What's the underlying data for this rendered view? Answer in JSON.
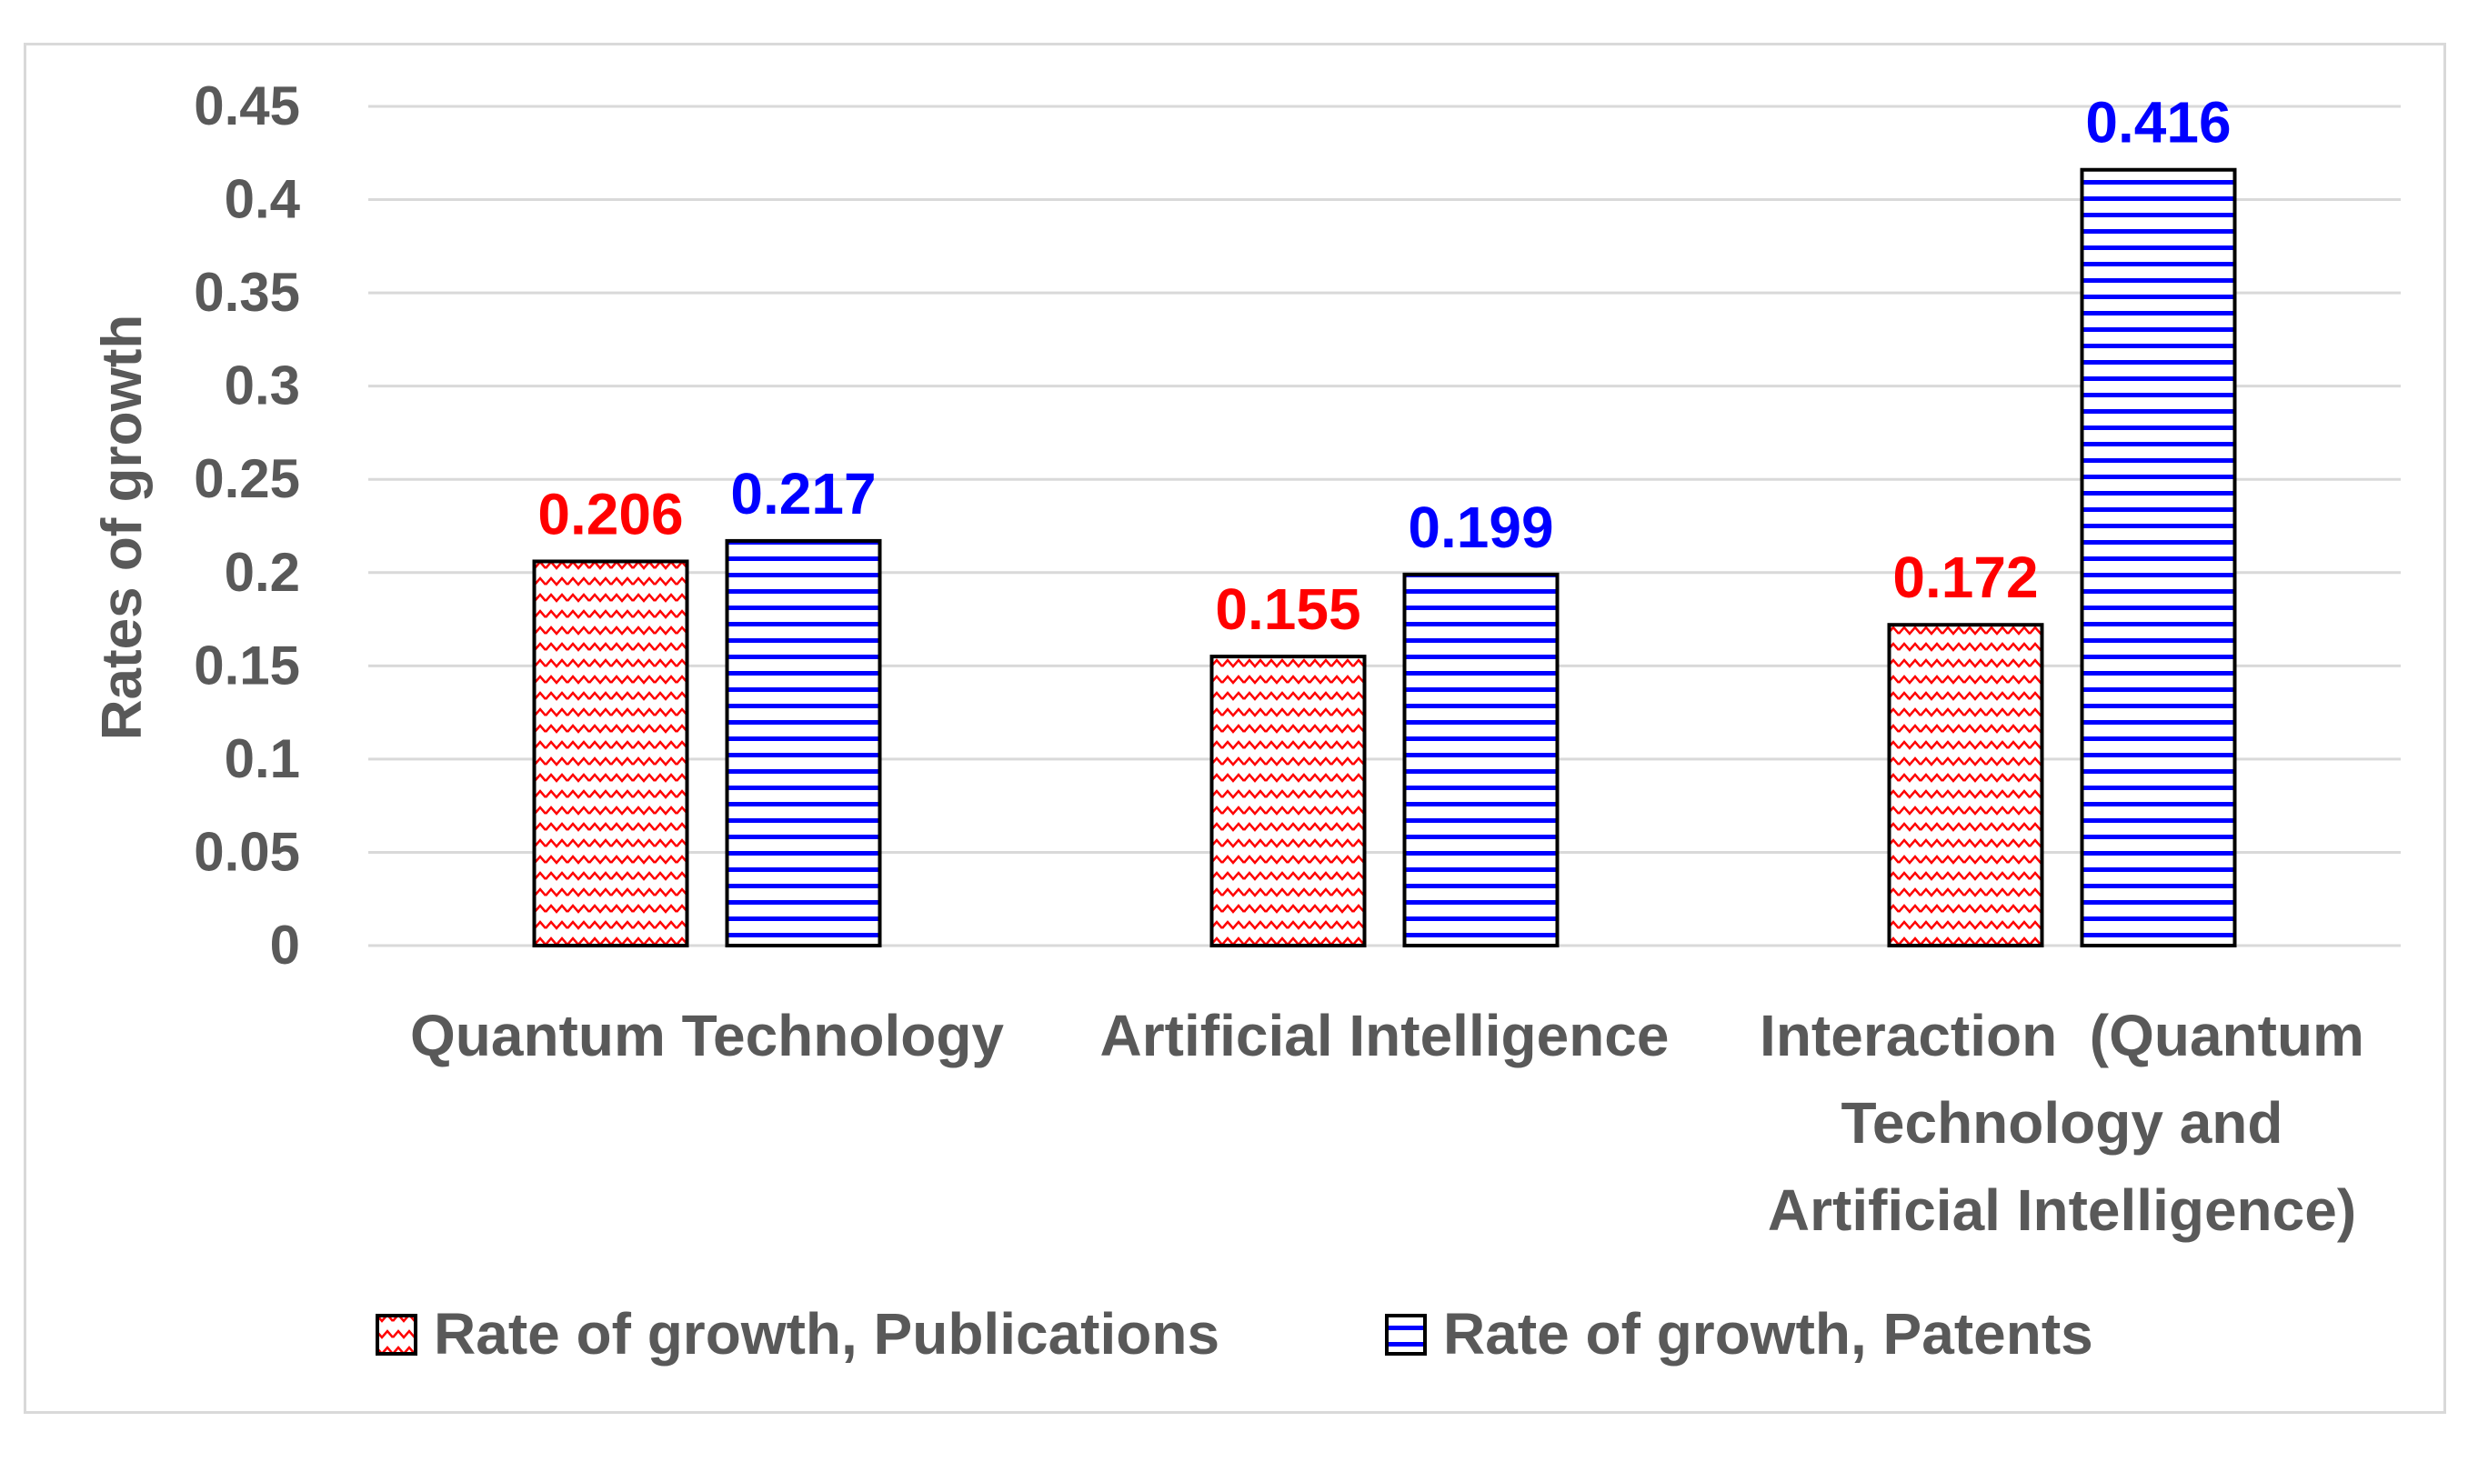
{
  "chart_data": {
    "type": "bar",
    "title": "",
    "xlabel": "",
    "ylabel": "Rates of growth",
    "ylim": [
      0,
      0.45
    ],
    "yticks": [
      "0",
      "0.05",
      "0.1",
      "0.15",
      "0.2",
      "0.25",
      "0.3",
      "0.35",
      "0.4",
      "0.45"
    ],
    "grid": true,
    "categories": [
      [
        "Quantum Technology"
      ],
      [
        "Artificial Intelligence"
      ],
      [
        "Interaction  (Quantum",
        "Technology and",
        "Artificial Intelligence)"
      ]
    ],
    "series": [
      {
        "name": "Rate of growth, Publications",
        "values": [
          0.206,
          0.155,
          0.172
        ],
        "labels": [
          "0.206",
          "0.155",
          "0.172"
        ],
        "color": "#ff0000",
        "pattern": "zigzag"
      },
      {
        "name": "Rate of growth, Patents",
        "values": [
          0.217,
          0.199,
          0.416
        ],
        "labels": [
          "0.217",
          "0.199",
          "0.416"
        ],
        "color": "#0000ff",
        "pattern": "horizontal-lines"
      }
    ],
    "legend_position": "bottom"
  }
}
